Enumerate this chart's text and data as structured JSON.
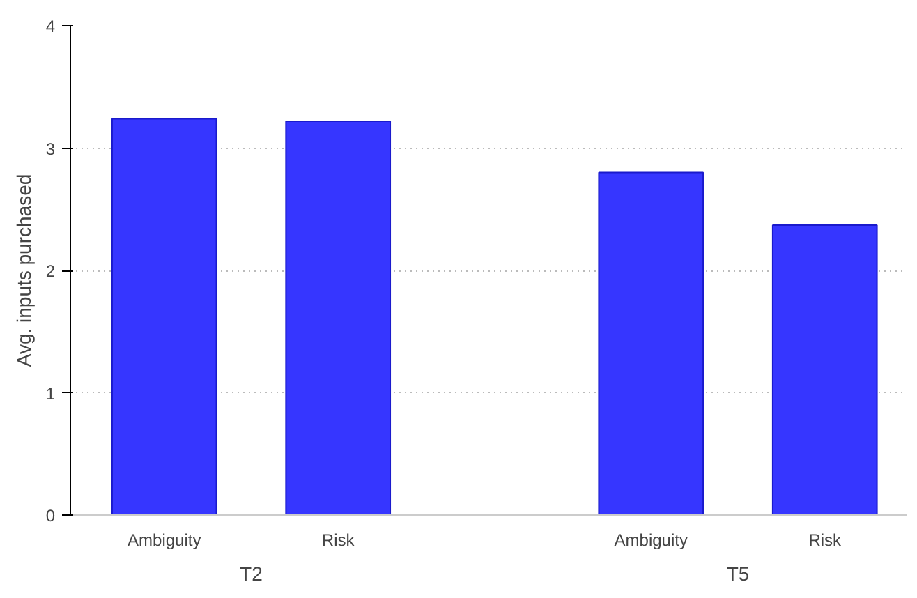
{
  "chart_data": {
    "type": "bar",
    "ylabel": "Avg. inputs purchased",
    "categories": [
      "Ambiguity",
      "Risk",
      "Ambiguity",
      "Risk"
    ],
    "values": [
      3.24,
      3.22,
      2.8,
      2.37
    ],
    "color": "#3636ff",
    "ylim": [
      0,
      4
    ],
    "yticks": [
      0,
      1,
      2,
      3,
      4
    ],
    "grid": "y",
    "annotations": [
      "T2",
      "T5"
    ]
  }
}
